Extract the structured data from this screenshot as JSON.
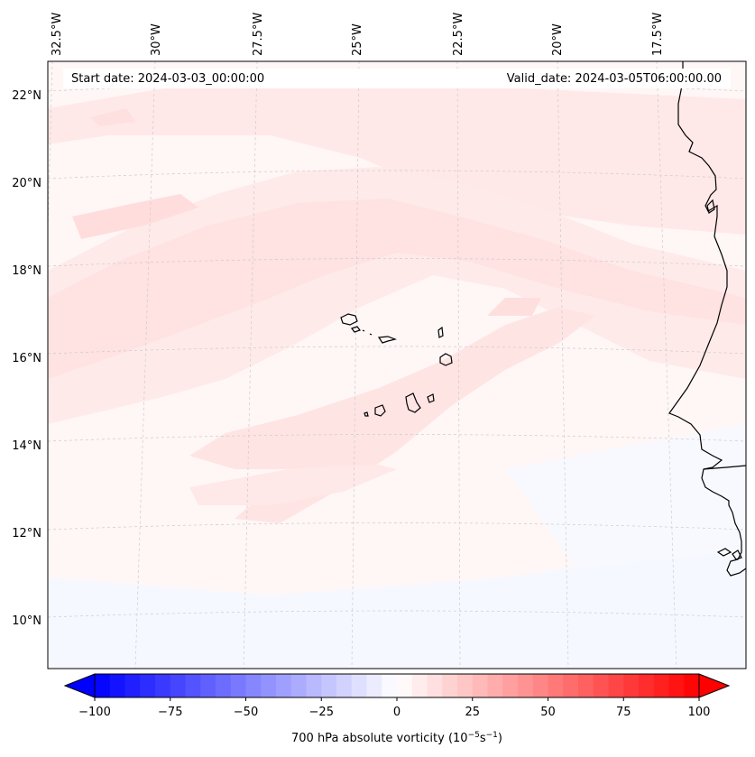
{
  "header": {
    "start_date": "Start date: 2024-03-03_00:00:00",
    "valid_date": "Valid_date: 2024-03-05T06:00:00.00"
  },
  "map": {
    "lon_labels": [
      "32.5°W",
      "30°W",
      "27.5°W",
      "25°W",
      "22.5°W",
      "20°W",
      "17.5°W"
    ],
    "lat_labels": [
      "22°N",
      "20°N",
      "18°N",
      "16°N",
      "14°N",
      "12°N",
      "10°N"
    ]
  },
  "colorbar": {
    "ticks": [
      "−100",
      "−75",
      "−50",
      "−25",
      "0",
      "25",
      "50",
      "75",
      "100"
    ],
    "label_main": "700 hPa absolute vorticity (10",
    "label_exp1": "−5",
    "label_mid": "s",
    "label_exp2": "−1",
    "label_close": ")",
    "vmin": -100,
    "vmax": 100
  },
  "colors": {
    "negative": "#0000ff",
    "neutral": "#ffffff",
    "positive": "#ff0000",
    "coast": "#000000"
  }
}
